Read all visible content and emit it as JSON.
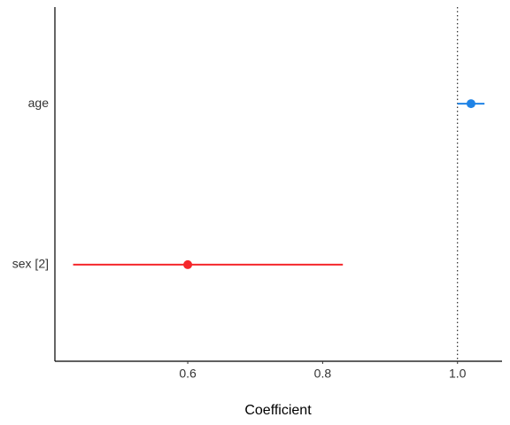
{
  "chart_data": {
    "type": "forest",
    "x_label": "Coefficient",
    "categories": [
      "sex [2]",
      "age"
    ],
    "values": [
      0.6,
      1.02
    ],
    "lower": [
      0.43,
      1.0
    ],
    "upper": [
      0.83,
      1.04
    ],
    "colors": [
      "#f5272b",
      "#1f83e6"
    ],
    "xlim": [
      0.403,
      1.066
    ],
    "xticks": [
      0.6,
      0.8,
      {
        "value": 1,
        "label": "1.0"
      }
    ],
    "reference_line": 1
  }
}
